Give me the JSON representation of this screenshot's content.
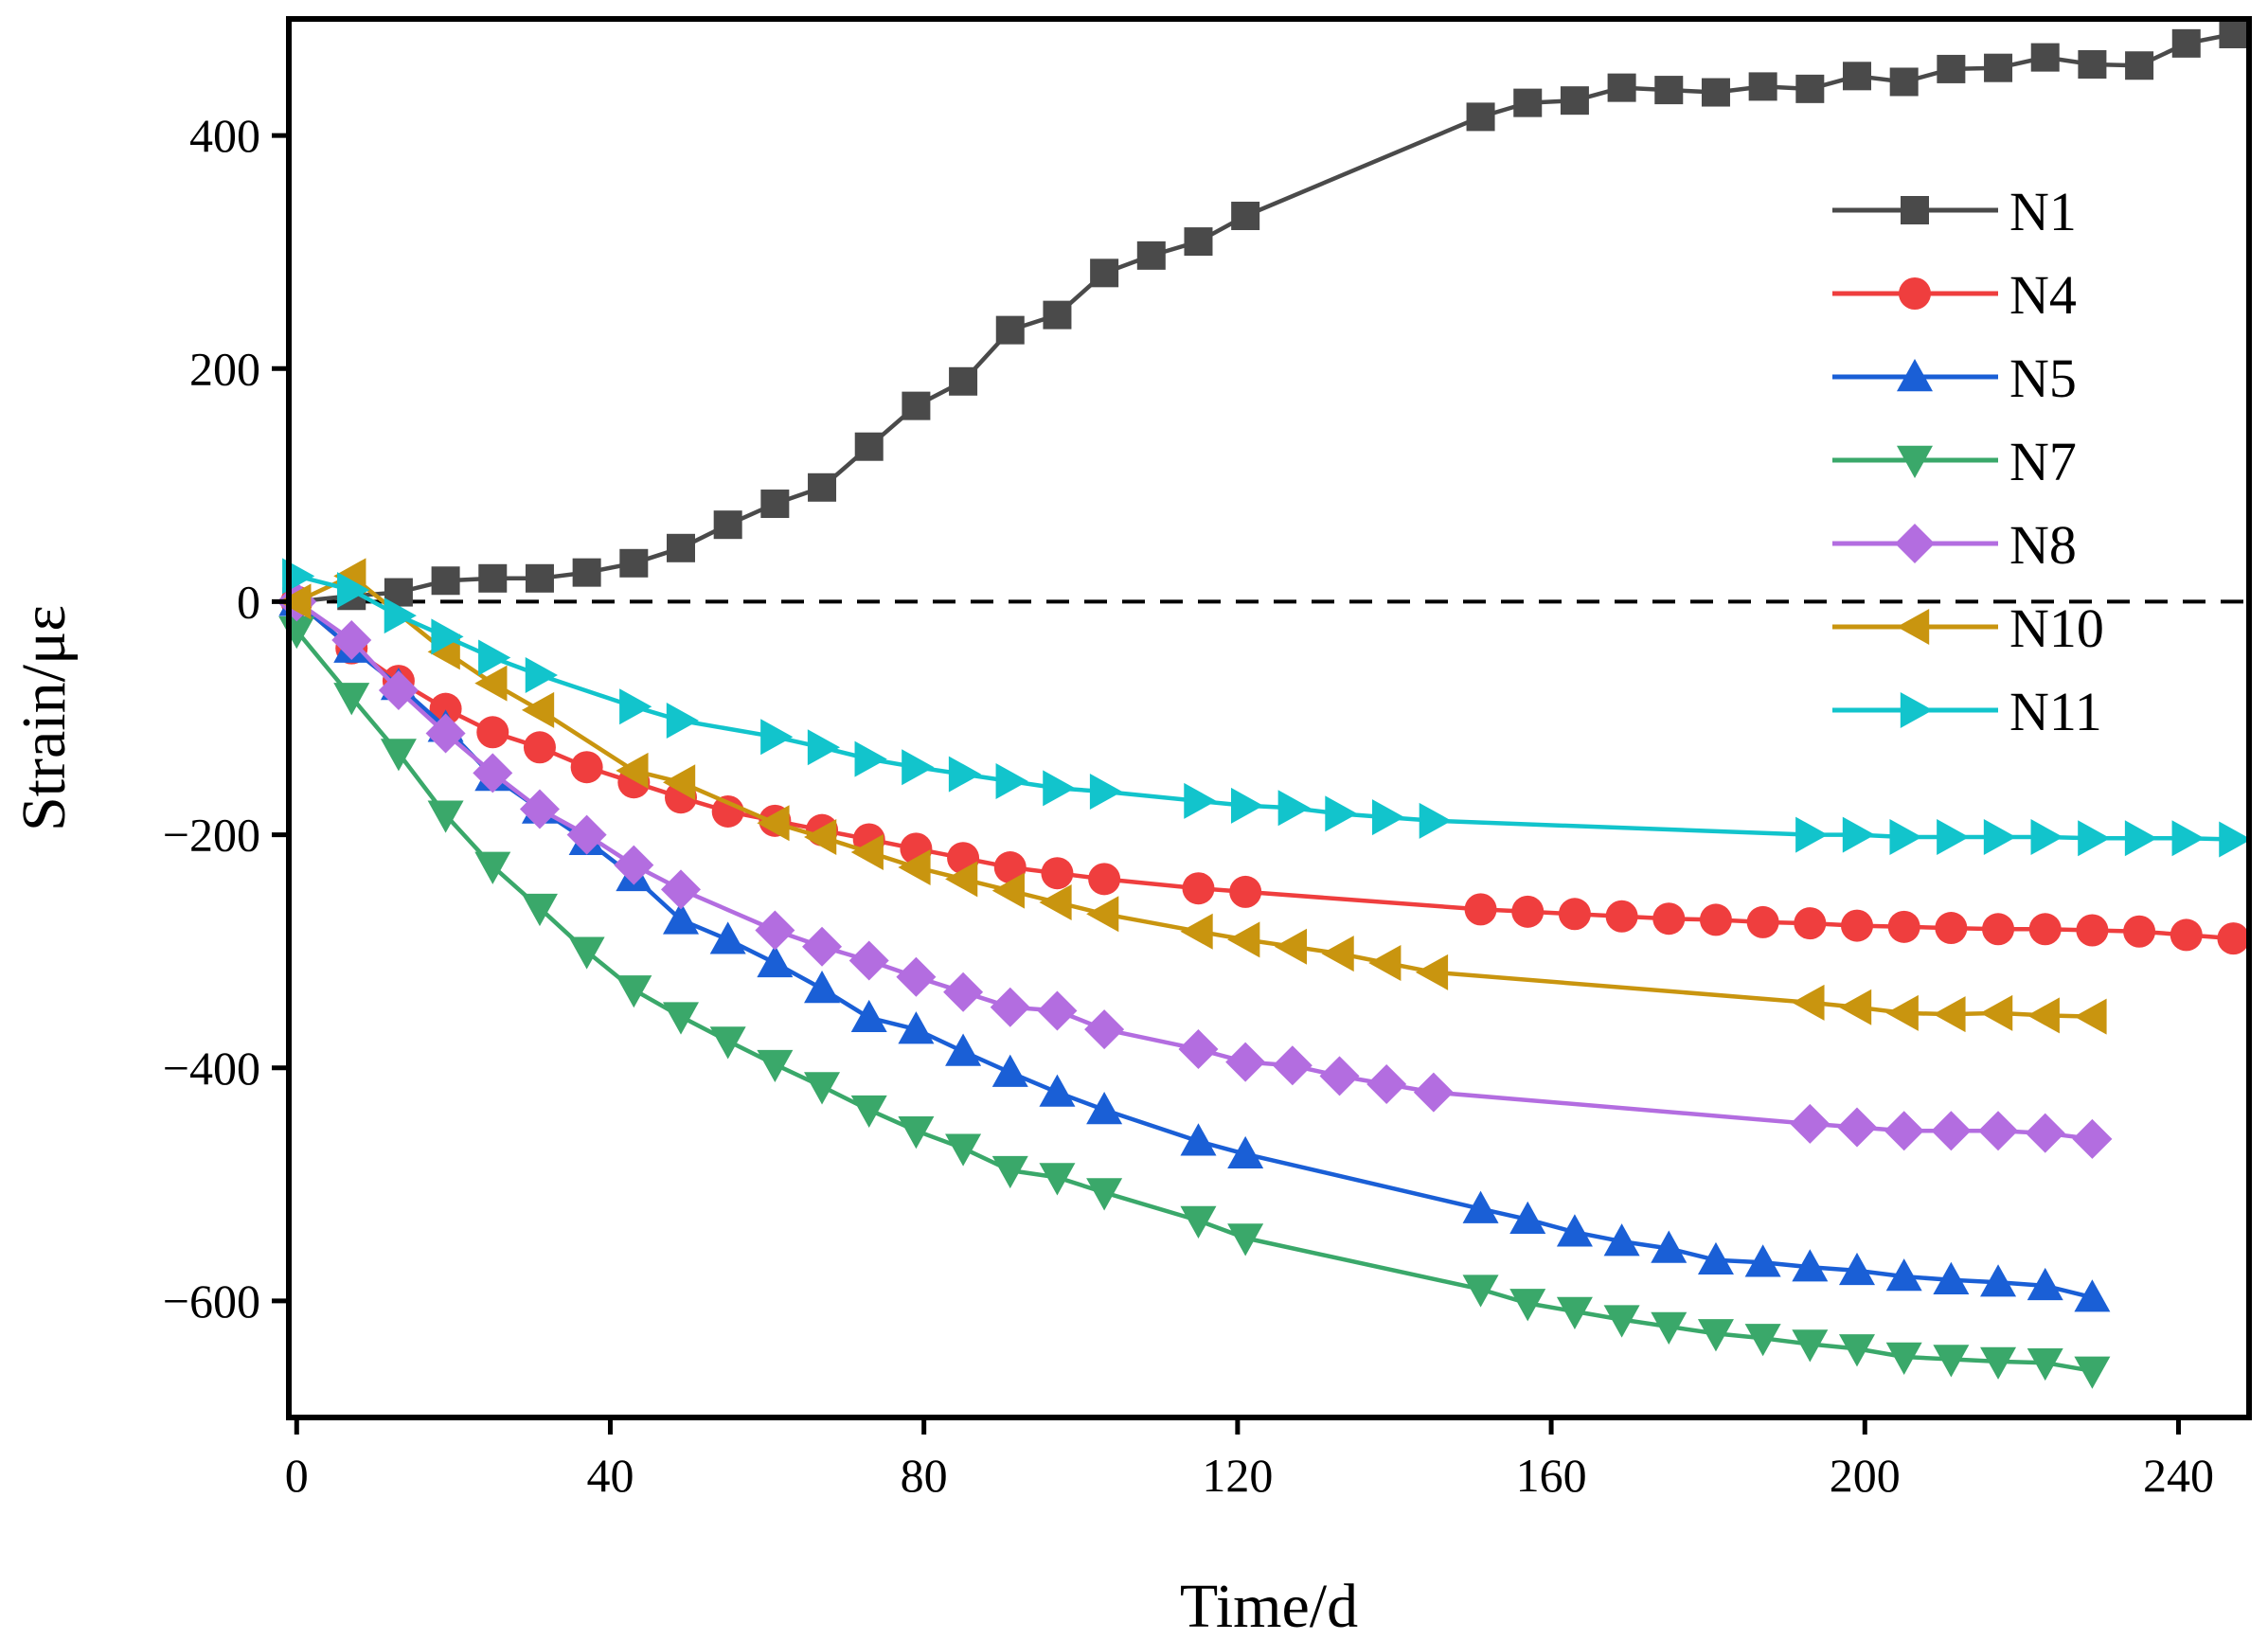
{
  "chart_data": {
    "type": "line",
    "xlabel": "Time/d",
    "ylabel": "Strain/με",
    "xlim": [
      -1,
      249
    ],
    "ylim": [
      -700,
      500
    ],
    "xticks": [
      0,
      40,
      80,
      120,
      160,
      200,
      240
    ],
    "yticks": [
      -600,
      -400,
      -200,
      0,
      200,
      400
    ],
    "xtick_labels": [
      "0",
      "40",
      "80",
      "120",
      "160",
      "200",
      "240"
    ],
    "ytick_labels": [
      "−600",
      "−400",
      "−200",
      "0",
      "200",
      "400"
    ],
    "reference_line": {
      "y": 0,
      "style": "dashed"
    },
    "legend_position": "right",
    "series": [
      {
        "name": "N1",
        "marker": "square",
        "color": "#4a4a4a",
        "x": [
          0,
          7,
          13,
          19,
          25,
          31,
          37,
          43,
          49,
          55,
          61,
          67,
          73,
          79,
          85,
          91,
          97,
          103,
          109,
          115,
          121,
          151,
          157,
          163,
          169,
          175,
          181,
          187,
          193,
          199,
          205,
          211,
          217,
          223,
          229,
          235,
          241,
          247
        ],
        "y": [
          0,
          5,
          8,
          18,
          20,
          20,
          25,
          33,
          46,
          66,
          84,
          98,
          133,
          168,
          189,
          233,
          246,
          282,
          297,
          309,
          331,
          416,
          428,
          430,
          441,
          439,
          437,
          442,
          440,
          451,
          446,
          457,
          458,
          467,
          461,
          460,
          479,
          487
        ]
      },
      {
        "name": "N4",
        "marker": "circle",
        "color": "#ef3e3e",
        "x": [
          0,
          7,
          13,
          19,
          25,
          31,
          37,
          43,
          49,
          55,
          61,
          67,
          73,
          79,
          85,
          91,
          97,
          103,
          115,
          121,
          151,
          157,
          163,
          169,
          175,
          181,
          187,
          193,
          199,
          205,
          211,
          217,
          223,
          229,
          235,
          241,
          247
        ],
        "y": [
          0,
          -40,
          -68,
          -92,
          -112,
          -125,
          -142,
          -155,
          -168,
          -180,
          -188,
          -196,
          -204,
          -212,
          -220,
          -228,
          -233,
          -238,
          -246,
          -249,
          -264,
          -266,
          -268,
          -270,
          -272,
          -273,
          -275,
          -276,
          -278,
          -279,
          -280,
          -281,
          -281,
          -282,
          -283,
          -286,
          -289
        ]
      },
      {
        "name": "N5",
        "marker": "triangle-up",
        "color": "#1a5fd6",
        "x": [
          0,
          7,
          13,
          19,
          25,
          31,
          37,
          43,
          49,
          55,
          61,
          67,
          73,
          79,
          85,
          91,
          97,
          103,
          115,
          121,
          151,
          157,
          163,
          169,
          175,
          181,
          187,
          193,
          199,
          205,
          211,
          217,
          223,
          229
        ],
        "y": [
          0,
          -40,
          -72,
          -108,
          -150,
          -178,
          -205,
          -236,
          -273,
          -290,
          -310,
          -332,
          -357,
          -367,
          -386,
          -404,
          -421,
          -436,
          -463,
          -474,
          -521,
          -530,
          -541,
          -549,
          -555,
          -565,
          -567,
          -571,
          -574,
          -579,
          -582,
          -584,
          -587,
          -597
        ]
      },
      {
        "name": "N7",
        "marker": "triangle-down",
        "color": "#3aa86a",
        "x": [
          0,
          7,
          13,
          19,
          25,
          31,
          37,
          43,
          49,
          55,
          61,
          67,
          73,
          79,
          85,
          91,
          97,
          103,
          115,
          121,
          151,
          157,
          163,
          169,
          175,
          181,
          187,
          193,
          199,
          205,
          211,
          217,
          223,
          229
        ],
        "y": [
          -25,
          -82,
          -130,
          -183,
          -227,
          -263,
          -300,
          -333,
          -356,
          -377,
          -397,
          -416,
          -436,
          -454,
          -469,
          -488,
          -494,
          -507,
          -531,
          -546,
          -590,
          -602,
          -609,
          -616,
          -622,
          -628,
          -632,
          -637,
          -641,
          -648,
          -650,
          -652,
          -653,
          -660
        ]
      },
      {
        "name": "N8",
        "marker": "diamond",
        "color": "#b36de0",
        "x": [
          0,
          7,
          13,
          19,
          25,
          31,
          37,
          43,
          49,
          61,
          67,
          73,
          79,
          85,
          91,
          97,
          103,
          115,
          121,
          127,
          133,
          139,
          145,
          193,
          199,
          205,
          211,
          217,
          223,
          229
        ],
        "y": [
          0,
          -33,
          -76,
          -113,
          -147,
          -178,
          -200,
          -226,
          -247,
          -282,
          -296,
          -308,
          -322,
          -335,
          -348,
          -351,
          -367,
          -384,
          -395,
          -398,
          -407,
          -414,
          -421,
          -448,
          -451,
          -454,
          -454,
          -454,
          -456,
          -461
        ]
      },
      {
        "name": "N10",
        "marker": "triangle-left",
        "color": "#c9950f",
        "x": [
          0,
          7,
          19,
          25,
          31,
          43,
          49,
          61,
          67,
          73,
          79,
          85,
          91,
          97,
          103,
          115,
          121,
          127,
          133,
          139,
          145,
          193,
          199,
          205,
          211,
          217,
          223,
          229
        ],
        "y": [
          0,
          22,
          -43,
          -70,
          -93,
          -145,
          -155,
          -190,
          -202,
          -215,
          -228,
          -238,
          -248,
          -258,
          -268,
          -283,
          -290,
          -296,
          -302,
          -310,
          -318,
          -344,
          -348,
          -353,
          -354,
          -353,
          -355,
          -356
        ]
      },
      {
        "name": "N11",
        "marker": "triangle-right",
        "color": "#12c4cc",
        "x": [
          0,
          7,
          13,
          19,
          25,
          31,
          43,
          49,
          61,
          67,
          73,
          79,
          85,
          91,
          97,
          103,
          115,
          121,
          127,
          133,
          139,
          145,
          193,
          199,
          205,
          211,
          217,
          223,
          229,
          235,
          241,
          247
        ],
        "y": [
          22,
          10,
          -12,
          -30,
          -48,
          -63,
          -90,
          -102,
          -116,
          -125,
          -135,
          -142,
          -148,
          -154,
          -160,
          -163,
          -171,
          -175,
          -177,
          -182,
          -185,
          -188,
          -200,
          -200,
          -202,
          -202,
          -202,
          -202,
          -203,
          -203,
          -203,
          -204
        ]
      }
    ]
  }
}
